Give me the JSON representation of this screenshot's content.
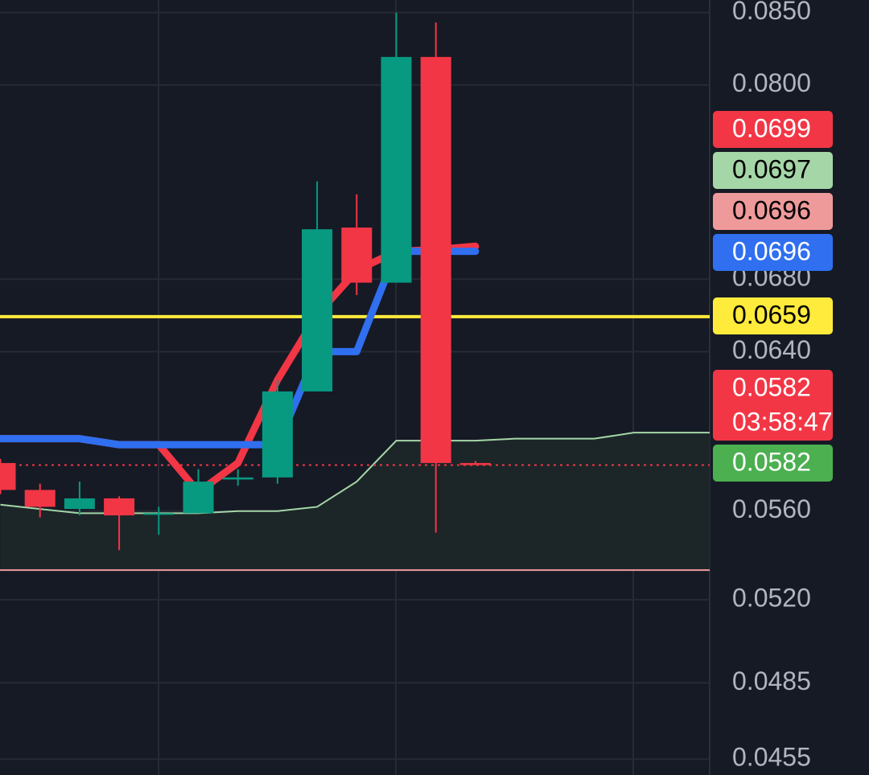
{
  "chart_data": {
    "type": "candlestick",
    "log_scale": true,
    "ylim": [
      0.0449,
      0.0859
    ],
    "yticks": [
      {
        "value": 0.085,
        "label": "0.0850"
      },
      {
        "value": 0.08,
        "label": "0.0800"
      },
      {
        "value": 0.068,
        "label": "0.0680"
      },
      {
        "value": 0.064,
        "label": "0.0640"
      },
      {
        "value": 0.056,
        "label": "0.0560"
      },
      {
        "value": 0.052,
        "label": "0.0520"
      },
      0.0485,
      0.0455
    ],
    "grid": true,
    "up_color": "#089981",
    "down_color": "#f23645",
    "open": [
      0.0583,
      0.057,
      0.0561,
      0.0566,
      0.0559,
      0.0559,
      0.0575,
      0.0576,
      0.0619,
      0.071,
      0.0678,
      0.0819,
      0.0583
    ],
    "high": [
      0.0585,
      0.0573,
      0.0574,
      0.0567,
      0.0562,
      0.058,
      0.058,
      0.0625,
      0.0738,
      0.073,
      0.085,
      0.0843,
      0.0584
    ],
    "low": [
      0.0568,
      0.0557,
      0.0558,
      0.0542,
      0.0549,
      0.0559,
      0.0572,
      0.0573,
      0.0619,
      0.0671,
      0.0678,
      0.055,
      0.0582
    ],
    "close": [
      0.057,
      0.0562,
      0.0566,
      0.0558,
      0.0559,
      0.0574,
      0.0576,
      0.0619,
      0.0709,
      0.0678,
      0.0819,
      0.0583,
      0.0582
    ],
    "overlays": [
      {
        "color": "#a5d6a7",
        "fill": true,
        "values": [
          0.0563,
          0.0561,
          0.0559,
          0.0559,
          0.0559,
          0.0559,
          0.056,
          0.056,
          0.0562,
          0.0574,
          0.0594,
          0.0594,
          0.0594,
          0.0595,
          0.0595,
          0.0595,
          0.0598,
          0.0598,
          0.0598
        ]
      },
      {
        "color": "#f23645",
        "values": [
          0.0595,
          0.0595,
          0.0595,
          0.0592,
          0.0592,
          0.0569,
          0.0583,
          0.0625,
          0.066,
          0.0685,
          0.0696,
          0.0697,
          0.0699
        ]
      },
      {
        "color": "#2f6ff0",
        "values": [
          0.0595,
          0.0595,
          0.0595,
          0.0592,
          0.0592,
          0.0592,
          0.0592,
          0.0592,
          0.064,
          0.064,
          0.0696,
          0.0696,
          0.0696
        ]
      }
    ],
    "hlines": [
      {
        "value": 0.0659,
        "color": "#ffeb3b",
        "width": 4
      },
      {
        "value": 0.0533,
        "color": "#ef9a9a",
        "width": 2
      },
      {
        "value": 0.0582,
        "color": "#f23645",
        "width": 2,
        "dashed": true
      }
    ],
    "price_tags": [
      {
        "value": 0.0699,
        "color": "#f23645",
        "text_color": "#ffffff"
      },
      {
        "value": 0.0697,
        "color": "#a5d6a7",
        "text_color": "#000000"
      },
      {
        "value": 0.0696,
        "color": "#ef9a9a",
        "text_color": "#000000"
      },
      {
        "value": 0.0696,
        "color": "#2f6ff0",
        "text_color": "#ffffff"
      },
      {
        "value": 0.0659,
        "color": "#ffeb3b",
        "text_color": "#000000"
      },
      {
        "value": 0.0582,
        "color": "#f23645",
        "text_color": "#ffffff",
        "countdown": "03:58:47"
      },
      {
        "value": 0.0582,
        "color": "#4caf50",
        "text_color": "#ffffff"
      }
    ]
  }
}
